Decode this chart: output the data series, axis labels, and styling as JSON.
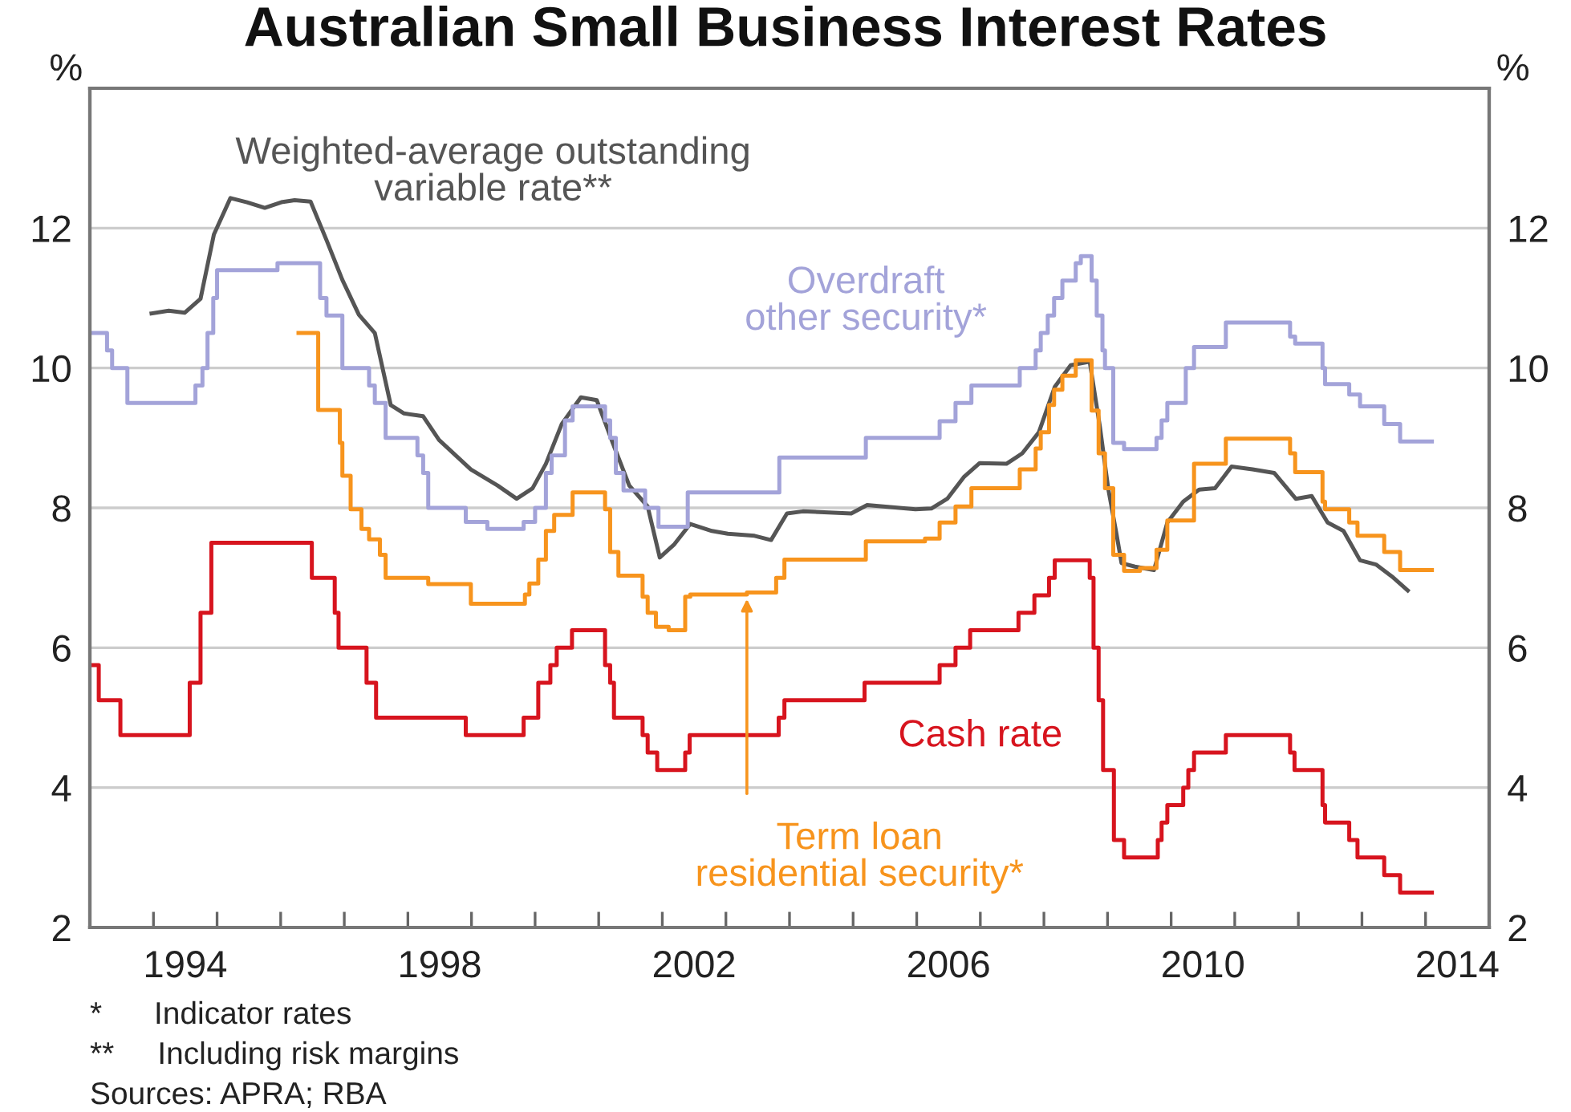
{
  "chart_data": {
    "type": "step",
    "title": "Australian Small Business Interest Rates",
    "ylabel": "%",
    "y2label": "%",
    "xlim": [
      1993,
      2015
    ],
    "ylim": [
      2,
      14
    ],
    "y2lim": [
      2,
      14
    ],
    "yticks": [
      2,
      4,
      6,
      8,
      10,
      12
    ],
    "y2ticks": [
      2,
      4,
      6,
      8,
      10,
      12
    ],
    "xticks": [
      {
        "value": 1994,
        "label": null
      },
      {
        "value": 1995,
        "label": null
      },
      {
        "value": 1996,
        "label": null
      },
      {
        "value": 1997,
        "label": null
      },
      {
        "value": 1998,
        "label": null
      },
      {
        "value": 1999,
        "label": null
      },
      {
        "value": 2000,
        "label": null
      },
      {
        "value": 2001,
        "label": null
      },
      {
        "value": 2002,
        "label": null
      },
      {
        "value": 2003,
        "label": null
      },
      {
        "value": 2004,
        "label": null
      },
      {
        "value": 2005,
        "label": null
      },
      {
        "value": 2006,
        "label": null
      },
      {
        "value": 2007,
        "label": null
      },
      {
        "value": 2008,
        "label": null
      },
      {
        "value": 2009,
        "label": null
      },
      {
        "value": 2010,
        "label": null
      },
      {
        "value": 2011,
        "label": null
      },
      {
        "value": 2012,
        "label": null
      },
      {
        "value": 2013,
        "label": null
      },
      {
        "value": 2014,
        "label": null
      },
      {
        "value": 1994.5,
        "label": "1994"
      },
      {
        "value": 1998.5,
        "label": "1998"
      },
      {
        "value": 2002.5,
        "label": "2002"
      },
      {
        "value": 2006.5,
        "label": "2006"
      },
      {
        "value": 2010.5,
        "label": "2010"
      },
      {
        "value": 2014.5,
        "label": "2014"
      }
    ],
    "grid": "y",
    "legend": false,
    "line_style": "solid",
    "marker": "none",
    "series": [
      {
        "name": "Weighted-average outstanding\nvariable rate**",
        "type": "line",
        "color": "#555555",
        "x": [
          1993.97,
          1994.24,
          1994.49,
          1994.74,
          1994.95,
          1995.21,
          1995.47,
          1995.75,
          1996.01,
          1996.22,
          1996.47,
          1996.72,
          1996.97,
          1997.23,
          1997.48,
          1997.73,
          1997.94,
          1998.24,
          1998.49,
          1998.99,
          1999.41,
          1999.71,
          1999.96,
          2000.17,
          2000.42,
          2000.72,
          2000.97,
          2001.22,
          2001.48,
          2001.77,
          2001.96,
          2002.19,
          2002.44,
          2002.78,
          2003.03,
          2003.45,
          2003.71,
          2003.96,
          2004.21,
          2004.97,
          2005.22,
          2005.98,
          2006.23,
          2006.48,
          2006.74,
          2006.99,
          2007.41,
          2007.66,
          2007.92,
          2008.17,
          2008.42,
          2008.72,
          2008.88,
          2009.01,
          2009.14,
          2009.22,
          2009.43,
          2009.73,
          2009.94,
          2010.19,
          2010.44,
          2010.69,
          2010.95,
          2011.28,
          2011.62,
          2011.96,
          2012.21,
          2012.46,
          2012.71,
          2012.97,
          2013.22,
          2013.47,
          2013.72
        ],
        "values": [
          10.78,
          10.82,
          10.79,
          10.99,
          11.91,
          12.43,
          12.37,
          12.29,
          12.37,
          12.4,
          12.38,
          11.83,
          11.26,
          10.76,
          10.5,
          9.47,
          9.35,
          9.31,
          8.97,
          8.55,
          8.32,
          8.13,
          8.28,
          8.63,
          9.2,
          9.58,
          9.54,
          8.93,
          8.32,
          8.02,
          7.29,
          7.48,
          7.77,
          7.67,
          7.63,
          7.6,
          7.54,
          7.92,
          7.95,
          7.92,
          8.04,
          7.98,
          7.99,
          8.13,
          8.44,
          8.64,
          8.63,
          8.78,
          9.08,
          9.73,
          10.04,
          10.09,
          9.16,
          8.28,
          7.63,
          7.21,
          7.16,
          7.11,
          7.79,
          8.09,
          8.26,
          8.28,
          8.59,
          8.55,
          8.5,
          8.13,
          8.17,
          7.79,
          7.67,
          7.25,
          7.19,
          7.02,
          6.82
        ]
      },
      {
        "name": "Overdraft\nother security*",
        "color": "#a3a3d9",
        "x": [
          1993.0,
          1993.27,
          1993.35,
          1993.59,
          1994.66,
          1994.77,
          1994.85,
          1994.94,
          1995.0,
          1995.95,
          1996.62,
          1996.72,
          1996.97,
          1997.39,
          1997.48,
          1997.65,
          1998.15,
          1998.24,
          1998.32,
          1998.91,
          1999.25,
          1999.82,
          2000.0,
          2000.17,
          2000.26,
          2000.47,
          2000.59,
          2001.1,
          2001.18,
          2001.27,
          2001.39,
          2001.73,
          2001.94,
          2002.4,
          2003.84,
          2005.2,
          2006.36,
          2006.61,
          2006.86,
          2007.62,
          2007.87,
          2007.95,
          2008.06,
          2008.16,
          2008.29,
          2008.5,
          2008.58,
          2008.75,
          2008.83,
          2008.92,
          2008.96,
          2009.09,
          2009.26,
          2009.77,
          2009.85,
          2009.94,
          2010.23,
          2010.36,
          2010.86,
          2011.87,
          2011.95,
          2012.38,
          2012.42,
          2012.8,
          2012.97,
          2013.35,
          2013.6,
          2014.1
        ],
        "values": [
          10.5,
          10.25,
          10.0,
          9.5,
          9.75,
          10.0,
          10.5,
          11.0,
          11.4,
          11.5,
          11.0,
          10.75,
          10.0,
          9.75,
          9.5,
          9.0,
          8.75,
          8.5,
          8.0,
          7.8,
          7.7,
          7.8,
          8.0,
          8.5,
          8.75,
          9.25,
          9.45,
          9.25,
          9.0,
          8.5,
          8.25,
          8.0,
          7.73,
          8.22,
          8.72,
          9.0,
          9.24,
          9.5,
          9.75,
          10.0,
          10.25,
          10.5,
          10.75,
          11.0,
          11.25,
          11.5,
          11.6,
          11.25,
          10.75,
          10.25,
          10.0,
          8.93,
          8.84,
          9.0,
          9.25,
          9.5,
          10.0,
          10.3,
          10.65,
          10.45,
          10.35,
          10.0,
          9.77,
          9.62,
          9.45,
          9.2,
          8.95,
          8.95
        ]
      },
      {
        "name": "Term loan\nresidential security*",
        "color": "#f7941d",
        "x": [
          1996.28,
          1996.59,
          1996.93,
          1996.97,
          1997.1,
          1997.27,
          1997.39,
          1997.56,
          1997.65,
          1998.32,
          1998.99,
          1999.84,
          1999.91,
          2000.05,
          2000.17,
          2000.3,
          2000.59,
          2001.1,
          2001.18,
          2001.31,
          2001.69,
          2001.77,
          2001.9,
          2002.1,
          2002.36,
          2002.44,
          2003.33,
          2003.79,
          2003.92,
          2005.2,
          2006.13,
          2006.36,
          2006.61,
          2006.86,
          2007.62,
          2007.87,
          2007.95,
          2008.08,
          2008.16,
          2008.29,
          2008.5,
          2008.75,
          2008.86,
          2008.96,
          2009.09,
          2009.26,
          2009.51,
          2009.77,
          2009.94,
          2010.36,
          2010.86,
          2011.87,
          2011.95,
          2012.38,
          2012.42,
          2012.8,
          2012.93,
          2013.35,
          2013.6,
          2014.1
        ],
        "values": [
          10.5,
          9.4,
          8.93,
          8.46,
          7.98,
          7.7,
          7.55,
          7.33,
          7.0,
          6.91,
          6.63,
          6.76,
          6.92,
          7.26,
          7.67,
          7.9,
          8.22,
          7.98,
          7.37,
          7.03,
          6.73,
          6.5,
          6.3,
          6.25,
          6.73,
          6.76,
          6.79,
          7.0,
          7.26,
          7.52,
          7.56,
          7.79,
          8.02,
          8.28,
          8.55,
          8.85,
          9.08,
          9.47,
          9.69,
          9.89,
          10.11,
          9.39,
          8.78,
          8.28,
          7.33,
          7.1,
          7.14,
          7.4,
          7.82,
          8.63,
          8.99,
          8.78,
          8.51,
          8.09,
          7.98,
          7.79,
          7.6,
          7.37,
          7.11,
          7.11
        ]
      },
      {
        "name": "Cash rate",
        "color": "#d7141e",
        "x": [
          1993.0,
          1993.14,
          1993.48,
          1994.57,
          1994.74,
          1994.91,
          1996.49,
          1996.85,
          1996.91,
          1997.35,
          1997.5,
          1998.91,
          1999.82,
          2000.05,
          2000.24,
          2000.34,
          2000.58,
          2001.1,
          2001.18,
          2001.24,
          2001.69,
          2001.77,
          2001.92,
          2002.36,
          2002.43,
          2003.83,
          2003.92,
          2005.18,
          2006.36,
          2006.61,
          2006.84,
          2007.6,
          2007.85,
          2008.08,
          2008.17,
          2008.72,
          2008.78,
          2008.86,
          2008.93,
          2009.1,
          2009.26,
          2009.79,
          2009.85,
          2009.94,
          2010.19,
          2010.27,
          2010.36,
          2010.86,
          2011.87,
          2011.94,
          2012.38,
          2012.42,
          2012.8,
          2012.93,
          2013.35,
          2013.6,
          2014.1
        ],
        "values": [
          5.75,
          5.25,
          4.75,
          5.5,
          6.5,
          7.5,
          7.0,
          6.5,
          6.0,
          5.5,
          5.0,
          4.75,
          5.0,
          5.5,
          5.75,
          6.0,
          6.25,
          5.75,
          5.5,
          5.0,
          4.75,
          4.5,
          4.25,
          4.5,
          4.75,
          5.0,
          5.25,
          5.5,
          5.75,
          6.0,
          6.25,
          6.5,
          6.75,
          7.0,
          7.25,
          7.0,
          6.0,
          5.25,
          4.25,
          3.25,
          3.0,
          3.25,
          3.5,
          3.75,
          4.0,
          4.25,
          4.5,
          4.75,
          4.5,
          4.25,
          3.75,
          3.5,
          3.25,
          3.0,
          2.75,
          2.5,
          2.5
        ]
      }
    ],
    "annotations": [
      "*      Indicator rates",
      "**     Including risk margins",
      "Sources: APRA; RBA"
    ]
  }
}
